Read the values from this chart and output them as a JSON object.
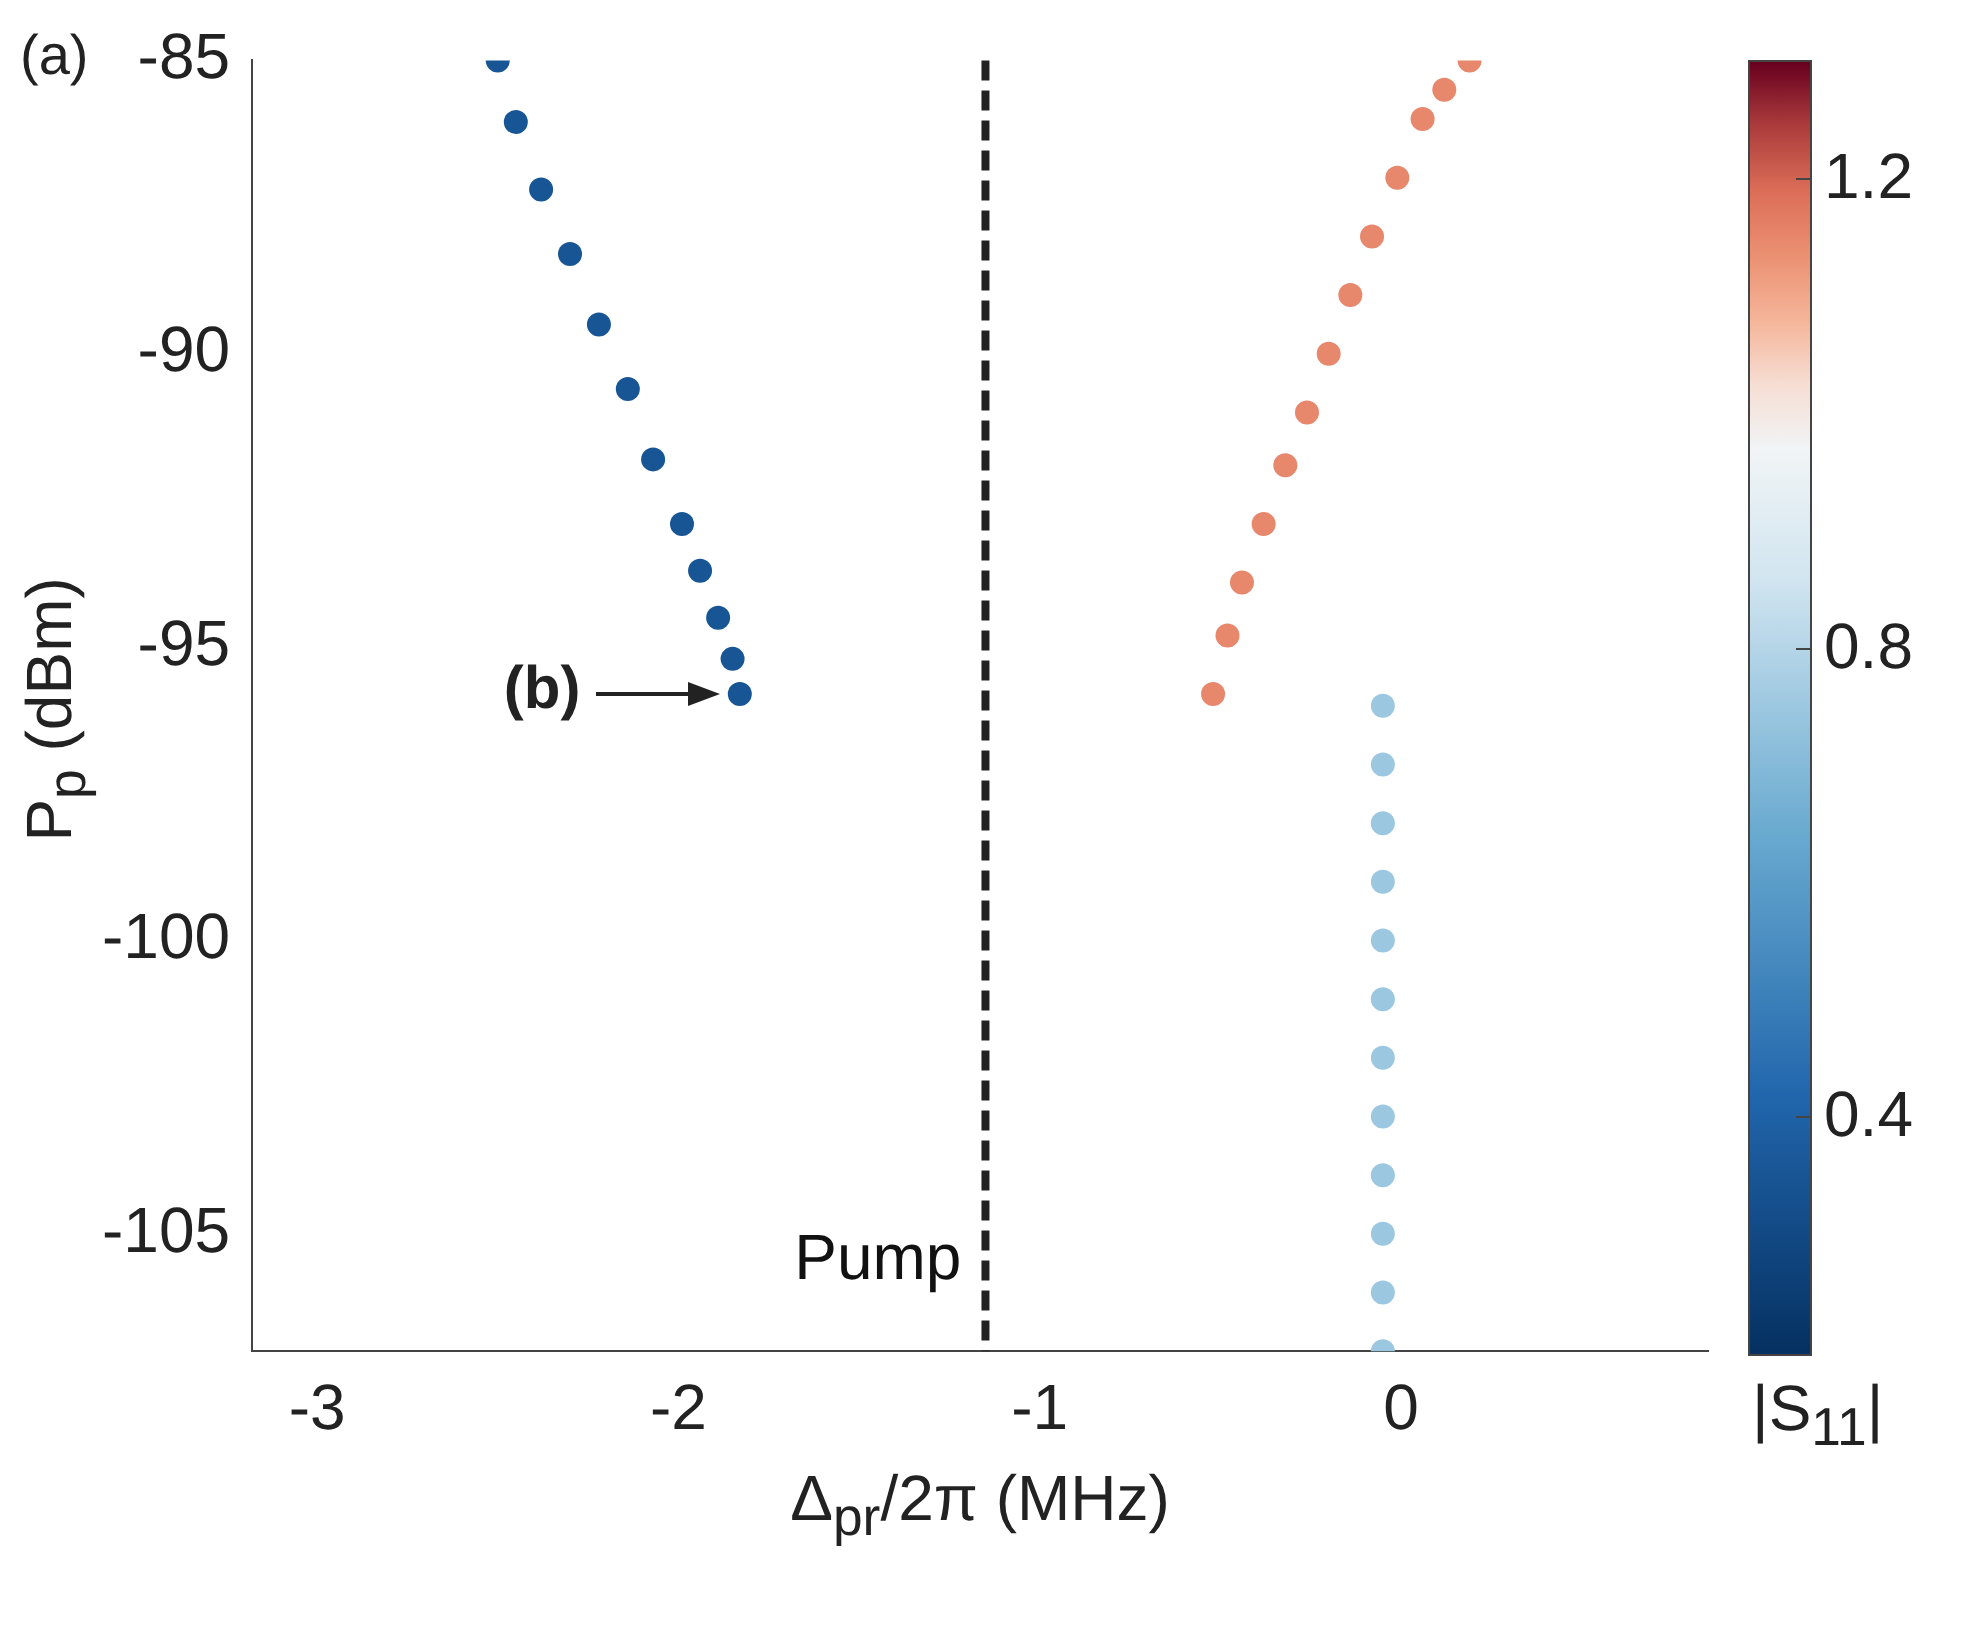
{
  "chart_data": {
    "type": "scatter",
    "xlabel": "Δ$_{pr}$/2π (MHz)",
    "ylabel": "P$_{p}$ (dBm)",
    "clabel": "|S$_{11}$|",
    "xlim": [
      -3.18,
      0.85
    ],
    "xticks": [
      -3,
      -2,
      -1,
      0
    ],
    "ylim": [
      -107,
      -85
    ],
    "yticks": [
      -85,
      -90,
      -95,
      -100,
      -105
    ],
    "clim": [
      0.2,
      1.3
    ],
    "cticks": [
      0.4,
      0.8,
      1.2
    ],
    "marker": "circle",
    "grid": false,
    "legend": false,
    "series": [
      {
        "x": [
          -2.5,
          -2.45,
          -2.38,
          -2.3,
          -2.22,
          -2.14,
          -2.07,
          -1.99,
          -1.94,
          -1.89,
          -1.85,
          -1.83
        ],
        "values": [
          -85,
          -86.05,
          -87.2,
          -88.3,
          -89.5,
          -90.6,
          -91.8,
          -92.9,
          -93.7,
          -94.5,
          -95.2,
          -95.8
        ],
        "cvalues": [
          0.35,
          0.35,
          0.35,
          0.35,
          0.35,
          0.35,
          0.35,
          0.35,
          0.35,
          0.35,
          0.35,
          0.35
        ]
      },
      {
        "x": [
          -0.52,
          -0.48,
          -0.44,
          -0.38,
          -0.32,
          -0.26,
          -0.2,
          -0.14,
          -0.08,
          -0.01,
          0.06,
          0.12,
          0.19
        ],
        "values": [
          -95.8,
          -94.8,
          -93.9,
          -92.9,
          -91.9,
          -91.0,
          -90.0,
          -89.0,
          -88.0,
          -87.0,
          -86.0,
          -85.5,
          -85
        ],
        "cvalues": [
          1.15,
          1.15,
          1.15,
          1.15,
          1.15,
          1.15,
          1.15,
          1.15,
          1.15,
          1.15,
          1.15,
          1.15,
          1.15
        ]
      },
      {
        "x": [
          -0.05,
          -0.05,
          -0.05,
          -0.05,
          -0.05,
          -0.05,
          -0.05,
          -0.05,
          -0.05,
          -0.05,
          -0.05,
          -0.05
        ],
        "values": [
          -96,
          -97,
          -98,
          -99,
          -100,
          -101,
          -102,
          -103,
          -104,
          -105,
          -106,
          -107
        ],
        "cvalues": [
          0.75,
          0.75,
          0.75,
          0.75,
          0.75,
          0.75,
          0.75,
          0.75,
          0.75,
          0.75,
          0.75,
          0.75
        ]
      }
    ],
    "ref_lines": [
      {
        "axis": "x",
        "value": -1.15,
        "label": "Pump",
        "color": "#222222",
        "line_style": "dashed"
      }
    ],
    "annotations": [
      "(a)",
      {
        "text": "(b)",
        "x": -1.83,
        "y": -95.8
      }
    ]
  }
}
